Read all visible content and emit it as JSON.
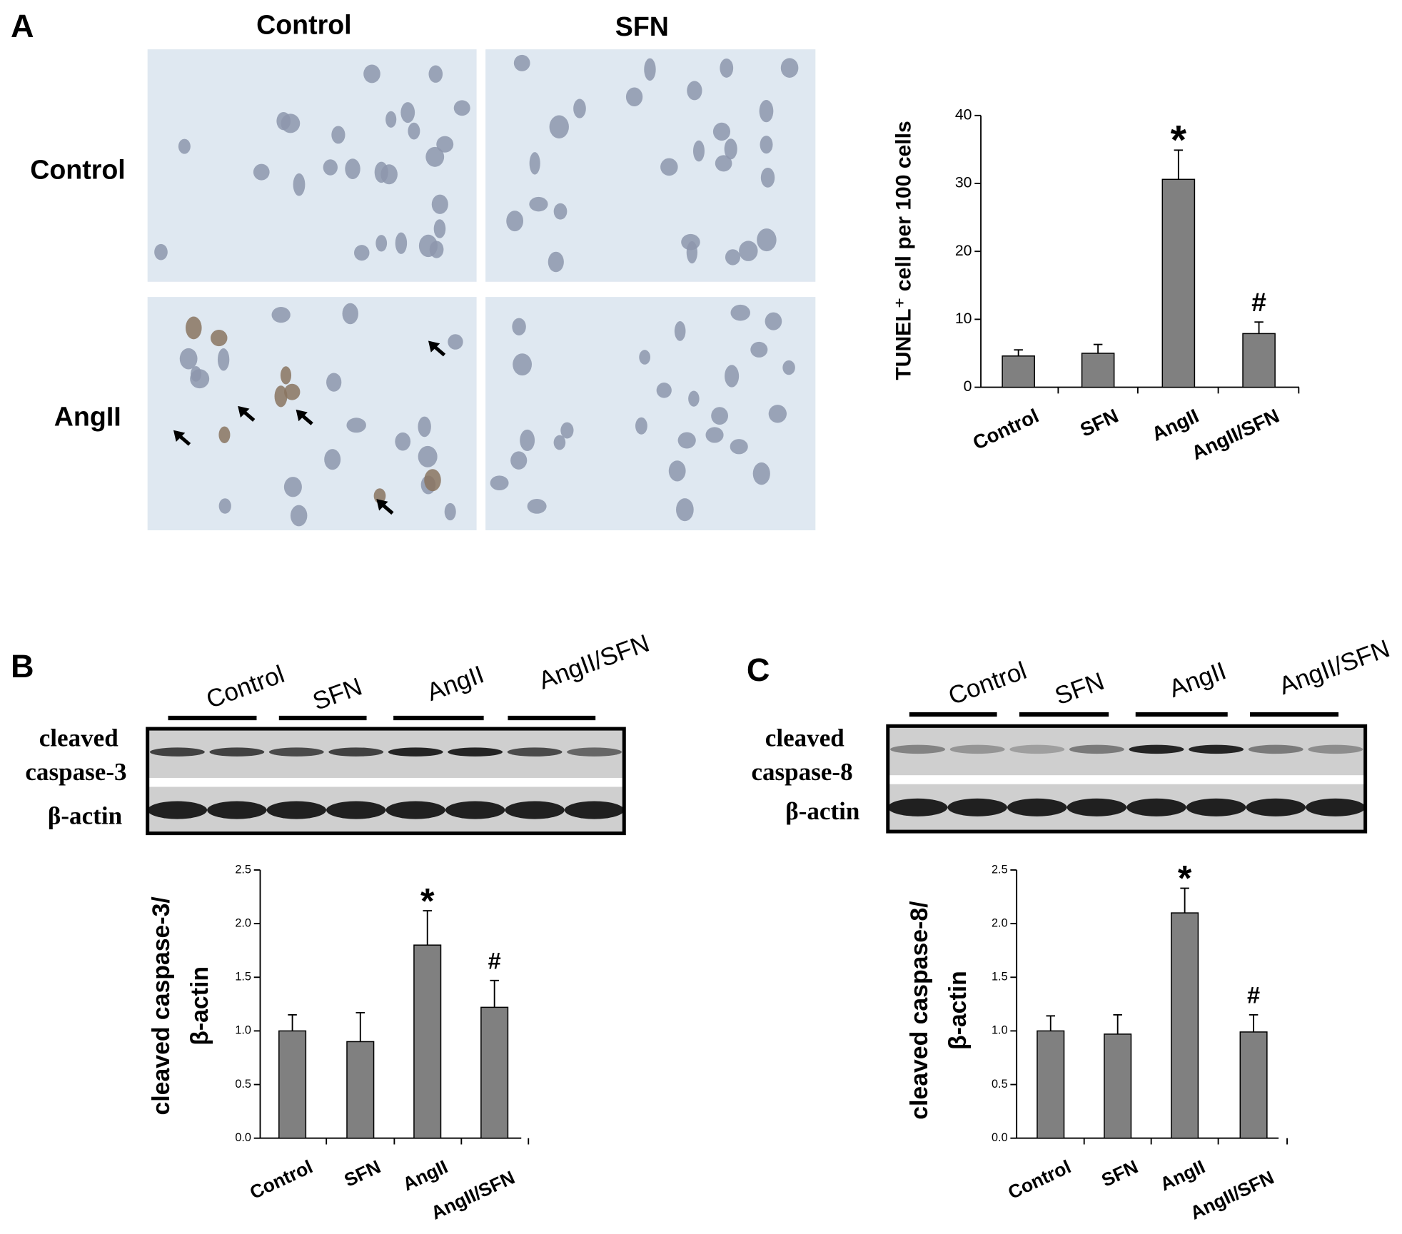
{
  "figure": {
    "panel_labels": [
      "A",
      "B",
      "C"
    ],
    "micrographs": {
      "columns": [
        "Control",
        "SFN"
      ],
      "rows": [
        "Control",
        "AngII"
      ]
    },
    "blots": [
      {
        "lanes": [
          "Control",
          "SFN",
          "AngII",
          "AngII/SFN"
        ],
        "labels": [
          "cleaved",
          "caspase-3",
          "β-actin"
        ]
      },
      {
        "lanes": [
          "Control",
          "SFN",
          "AngII",
          "AngII/SFN"
        ],
        "labels": [
          "cleaved",
          "caspase-8",
          "β-actin"
        ]
      }
    ]
  },
  "chart_data": [
    {
      "type": "bar",
      "ylabel": "TUNEL⁺ cell per 100 cells",
      "categories": [
        "Control",
        "SFN",
        "AngII",
        "AngII/SFN"
      ],
      "values": [
        4.6,
        5.0,
        30.6,
        7.9
      ],
      "errors": [
        0.9,
        1.3,
        4.3,
        1.7
      ],
      "annotations": [
        null,
        null,
        "*",
        "#"
      ],
      "color": "#808080",
      "ylim": [
        0,
        40
      ],
      "yticks": [
        0,
        10,
        20,
        30,
        40
      ]
    },
    {
      "type": "bar",
      "ylabel": [
        "cleaved caspase-3/",
        "β-actin"
      ],
      "categories": [
        "Control",
        "SFN",
        "AngII",
        "AngII/SFN"
      ],
      "values": [
        1.0,
        0.9,
        1.8,
        1.22
      ],
      "errors": [
        0.15,
        0.27,
        0.32,
        0.25
      ],
      "annotations": [
        null,
        null,
        "*",
        "#"
      ],
      "color": "#808080",
      "ylim": [
        0,
        2.5
      ],
      "yticks": [
        {
          "value": 0,
          "label": "0.0"
        },
        0.5,
        {
          "value": 1,
          "label": "1.0"
        },
        1.5,
        {
          "value": 2,
          "label": "2.0"
        },
        2.5
      ]
    },
    {
      "type": "bar",
      "ylabel": [
        "cleaved caspase-8/",
        "β-actin"
      ],
      "categories": [
        "Control",
        "SFN",
        "AngII",
        "AngII/SFN"
      ],
      "values": [
        1.0,
        0.97,
        2.1,
        0.99
      ],
      "errors": [
        0.14,
        0.18,
        0.23,
        0.16
      ],
      "annotations": [
        null,
        null,
        "*",
        "#"
      ],
      "color": "#808080",
      "ylim": [
        0,
        2.5
      ],
      "yticks": [
        {
          "value": 0,
          "label": "0.0"
        },
        0.5,
        {
          "value": 1,
          "label": "1.0"
        },
        1.5,
        {
          "value": 2,
          "label": "2.0"
        },
        2.5
      ]
    }
  ]
}
